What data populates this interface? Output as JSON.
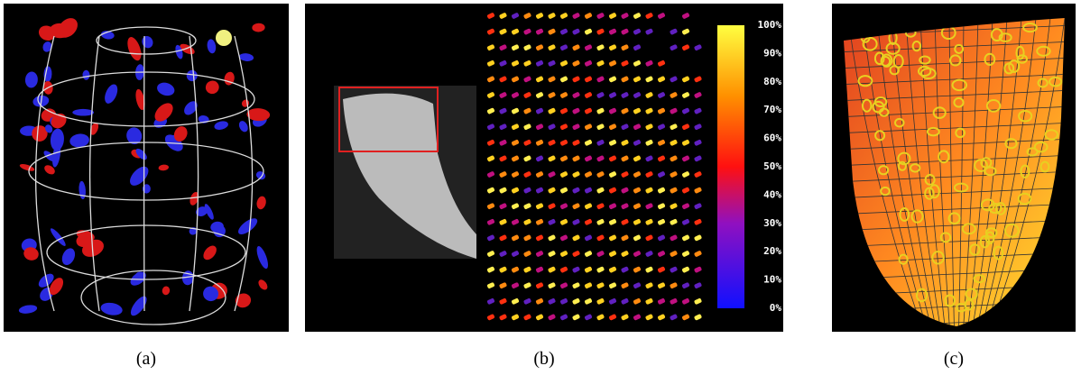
{
  "panels": [
    {
      "caption": "(a)"
    },
    {
      "caption": "(b)"
    },
    {
      "caption": "(c)"
    }
  ],
  "colorbar": {
    "ticks": [
      {
        "value": 100,
        "label": "100%"
      },
      {
        "value": 90,
        "label": "90%"
      },
      {
        "value": 80,
        "label": "80%"
      },
      {
        "value": 70,
        "label": "70%"
      },
      {
        "value": 60,
        "label": "60%"
      },
      {
        "value": 50,
        "label": "50%"
      },
      {
        "value": 40,
        "label": "40%"
      },
      {
        "value": 30,
        "label": "30%"
      },
      {
        "value": 20,
        "label": "20%"
      },
      {
        "value": 10,
        "label": "10%"
      },
      {
        "value": 0,
        "label": "0%"
      }
    ]
  }
}
